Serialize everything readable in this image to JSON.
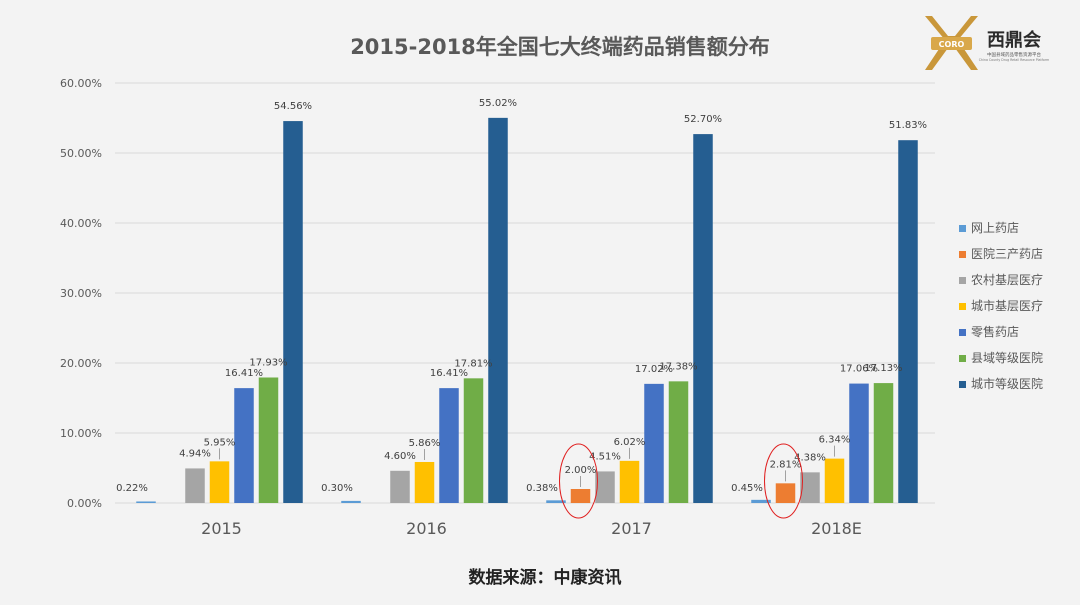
{
  "logo": {
    "badge": "CORO",
    "name": "西鼎会",
    "subtitle_cn": "中国县域药品零售资源平台",
    "subtitle_en": "China County Drug Retail Resource Platform"
  },
  "source": "数据来源：中康资讯",
  "colors": {
    "background": "#f3f3f3",
    "gridline": "#d9d9d9",
    "annotation_circle": "#e02020"
  },
  "chart_data": {
    "type": "bar",
    "title": "2015-2018年全国七大终端药品销售额分布",
    "categories": [
      "2015",
      "2016",
      "2017",
      "2018E"
    ],
    "ylim": [
      0,
      60
    ],
    "yticks": [
      0,
      10,
      20,
      30,
      40,
      50,
      60
    ],
    "ytick_labels": [
      "0.00%",
      "10.00%",
      "20.00%",
      "30.00%",
      "40.00%",
      "50.00%",
      "60.00%"
    ],
    "grid": true,
    "legend_position": "right",
    "series": [
      {
        "name": "网上药店",
        "color": "#5b9bd5",
        "values": [
          0.22,
          0.3,
          0.38,
          0.45
        ],
        "labels": [
          "0.22%",
          "0.30%",
          "0.38%",
          "0.45%"
        ]
      },
      {
        "name": "医院三产药店",
        "color": "#ed7d31",
        "values": [
          null,
          null,
          2.0,
          2.81
        ],
        "labels": [
          "",
          "",
          "2.00%",
          "2.81%"
        ]
      },
      {
        "name": "农村基层医疗",
        "color": "#a5a5a5",
        "values": [
          4.94,
          4.6,
          4.51,
          4.38
        ],
        "labels": [
          "4.94%",
          "4.60%",
          "4.51%",
          "4.38%"
        ]
      },
      {
        "name": "城市基层医疗",
        "color": "#ffc000",
        "values": [
          5.95,
          5.86,
          6.02,
          6.34
        ],
        "labels": [
          "5.95%",
          "5.86%",
          "6.02%",
          "6.34%"
        ]
      },
      {
        "name": "零售药店",
        "color": "#4472c4",
        "values": [
          16.41,
          16.41,
          17.02,
          17.06
        ],
        "labels": [
          "16.41%",
          "16.41%",
          "17.02%",
          "17.06%"
        ]
      },
      {
        "name": "县域等级医院",
        "color": "#70ad47",
        "values": [
          17.93,
          17.81,
          17.38,
          17.13
        ],
        "labels": [
          "17.93%",
          "17.81%",
          "17.38%",
          "17.13%"
        ]
      },
      {
        "name": "城市等级医院",
        "color": "#255e91",
        "values": [
          54.56,
          55.02,
          52.7,
          51.83
        ],
        "labels": [
          "54.56%",
          "55.02%",
          "52.70%",
          "51.83%"
        ]
      }
    ],
    "highlighted": [
      {
        "series": "医院三产药店",
        "category": "2017"
      },
      {
        "series": "医院三产药店",
        "category": "2018E"
      }
    ]
  }
}
